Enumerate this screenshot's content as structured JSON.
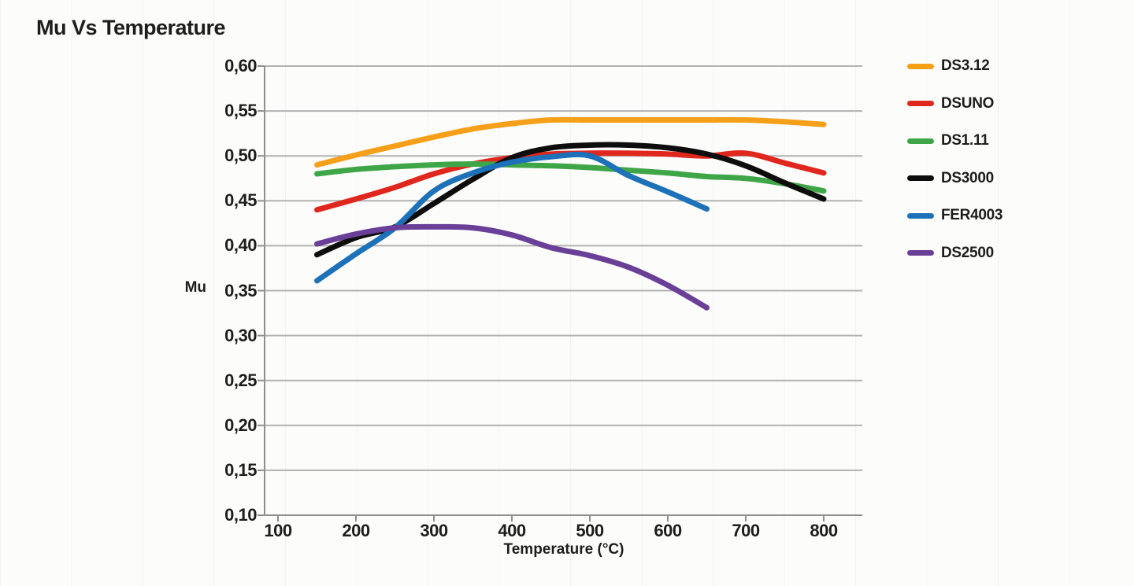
{
  "page": {
    "title": "Mu Vs Temperature"
  },
  "chart_data": {
    "type": "line",
    "title": "Mu Vs Temperature",
    "xlabel": "Temperature (°C)",
    "ylabel": "Mu",
    "xlim": [
      100,
      850
    ],
    "ylim": [
      0.1,
      0.6
    ],
    "grid": "horizontal",
    "legend_position": "right",
    "x_ticks": [
      100,
      200,
      300,
      400,
      500,
      600,
      700,
      800
    ],
    "x_tick_labels": [
      "100",
      "200",
      "300",
      "400",
      "500",
      "600",
      "700",
      "800"
    ],
    "y_ticks": [
      0.1,
      0.15,
      0.2,
      0.25,
      0.3,
      0.35,
      0.4,
      0.45,
      0.5,
      0.55,
      0.6
    ],
    "y_tick_labels": [
      "0,10",
      "0,15",
      "0,20",
      "0,25",
      "0,30",
      "0,35",
      "0,40",
      "0,45",
      "0,50",
      "0,55",
      "0,60"
    ],
    "series": [
      {
        "name": "DS3.12",
        "color": "#F6A01A",
        "x": [
          150,
          200,
          250,
          300,
          350,
          400,
          450,
          500,
          550,
          600,
          650,
          700,
          750,
          800
        ],
        "y": [
          0.49,
          0.501,
          0.511,
          0.521,
          0.53,
          0.536,
          0.54,
          0.54,
          0.54,
          0.54,
          0.54,
          0.54,
          0.538,
          0.535
        ]
      },
      {
        "name": "DSUNO",
        "color": "#E0271E",
        "x": [
          150,
          200,
          250,
          300,
          350,
          400,
          450,
          500,
          550,
          600,
          650,
          700,
          750,
          800
        ],
        "y": [
          0.44,
          0.452,
          0.465,
          0.48,
          0.491,
          0.498,
          0.502,
          0.503,
          0.503,
          0.502,
          0.5,
          0.503,
          0.492,
          0.481
        ]
      },
      {
        "name": "DS1.11",
        "color": "#3FA648",
        "x": [
          150,
          200,
          250,
          300,
          350,
          400,
          450,
          500,
          550,
          600,
          650,
          700,
          750,
          800
        ],
        "y": [
          0.48,
          0.485,
          0.488,
          0.49,
          0.491,
          0.49,
          0.489,
          0.487,
          0.484,
          0.481,
          0.477,
          0.475,
          0.469,
          0.461
        ]
      },
      {
        "name": "DS3000",
        "color": "#0d0d0d",
        "x": [
          150,
          200,
          250,
          300,
          350,
          400,
          450,
          500,
          550,
          600,
          650,
          700,
          750,
          800
        ],
        "y": [
          0.39,
          0.409,
          0.421,
          0.447,
          0.474,
          0.498,
          0.509,
          0.512,
          0.512,
          0.509,
          0.502,
          0.489,
          0.47,
          0.452
        ]
      },
      {
        "name": "FER4003",
        "color": "#1D71B8",
        "x": [
          150,
          200,
          250,
          300,
          350,
          400,
          450,
          500,
          550,
          600,
          650
        ],
        "y": [
          0.361,
          0.391,
          0.42,
          0.461,
          0.481,
          0.493,
          0.499,
          0.5,
          0.478,
          0.46,
          0.441
        ]
      },
      {
        "name": "DS2500",
        "color": "#6A3F97",
        "x": [
          150,
          200,
          250,
          300,
          350,
          400,
          450,
          500,
          550,
          600,
          650
        ],
        "y": [
          0.402,
          0.413,
          0.42,
          0.421,
          0.42,
          0.412,
          0.398,
          0.389,
          0.376,
          0.356,
          0.331
        ]
      }
    ],
    "style": {
      "grid_color": "#b2b2b2",
      "axis_color": "#8f8f8f",
      "line_width": 7
    }
  }
}
